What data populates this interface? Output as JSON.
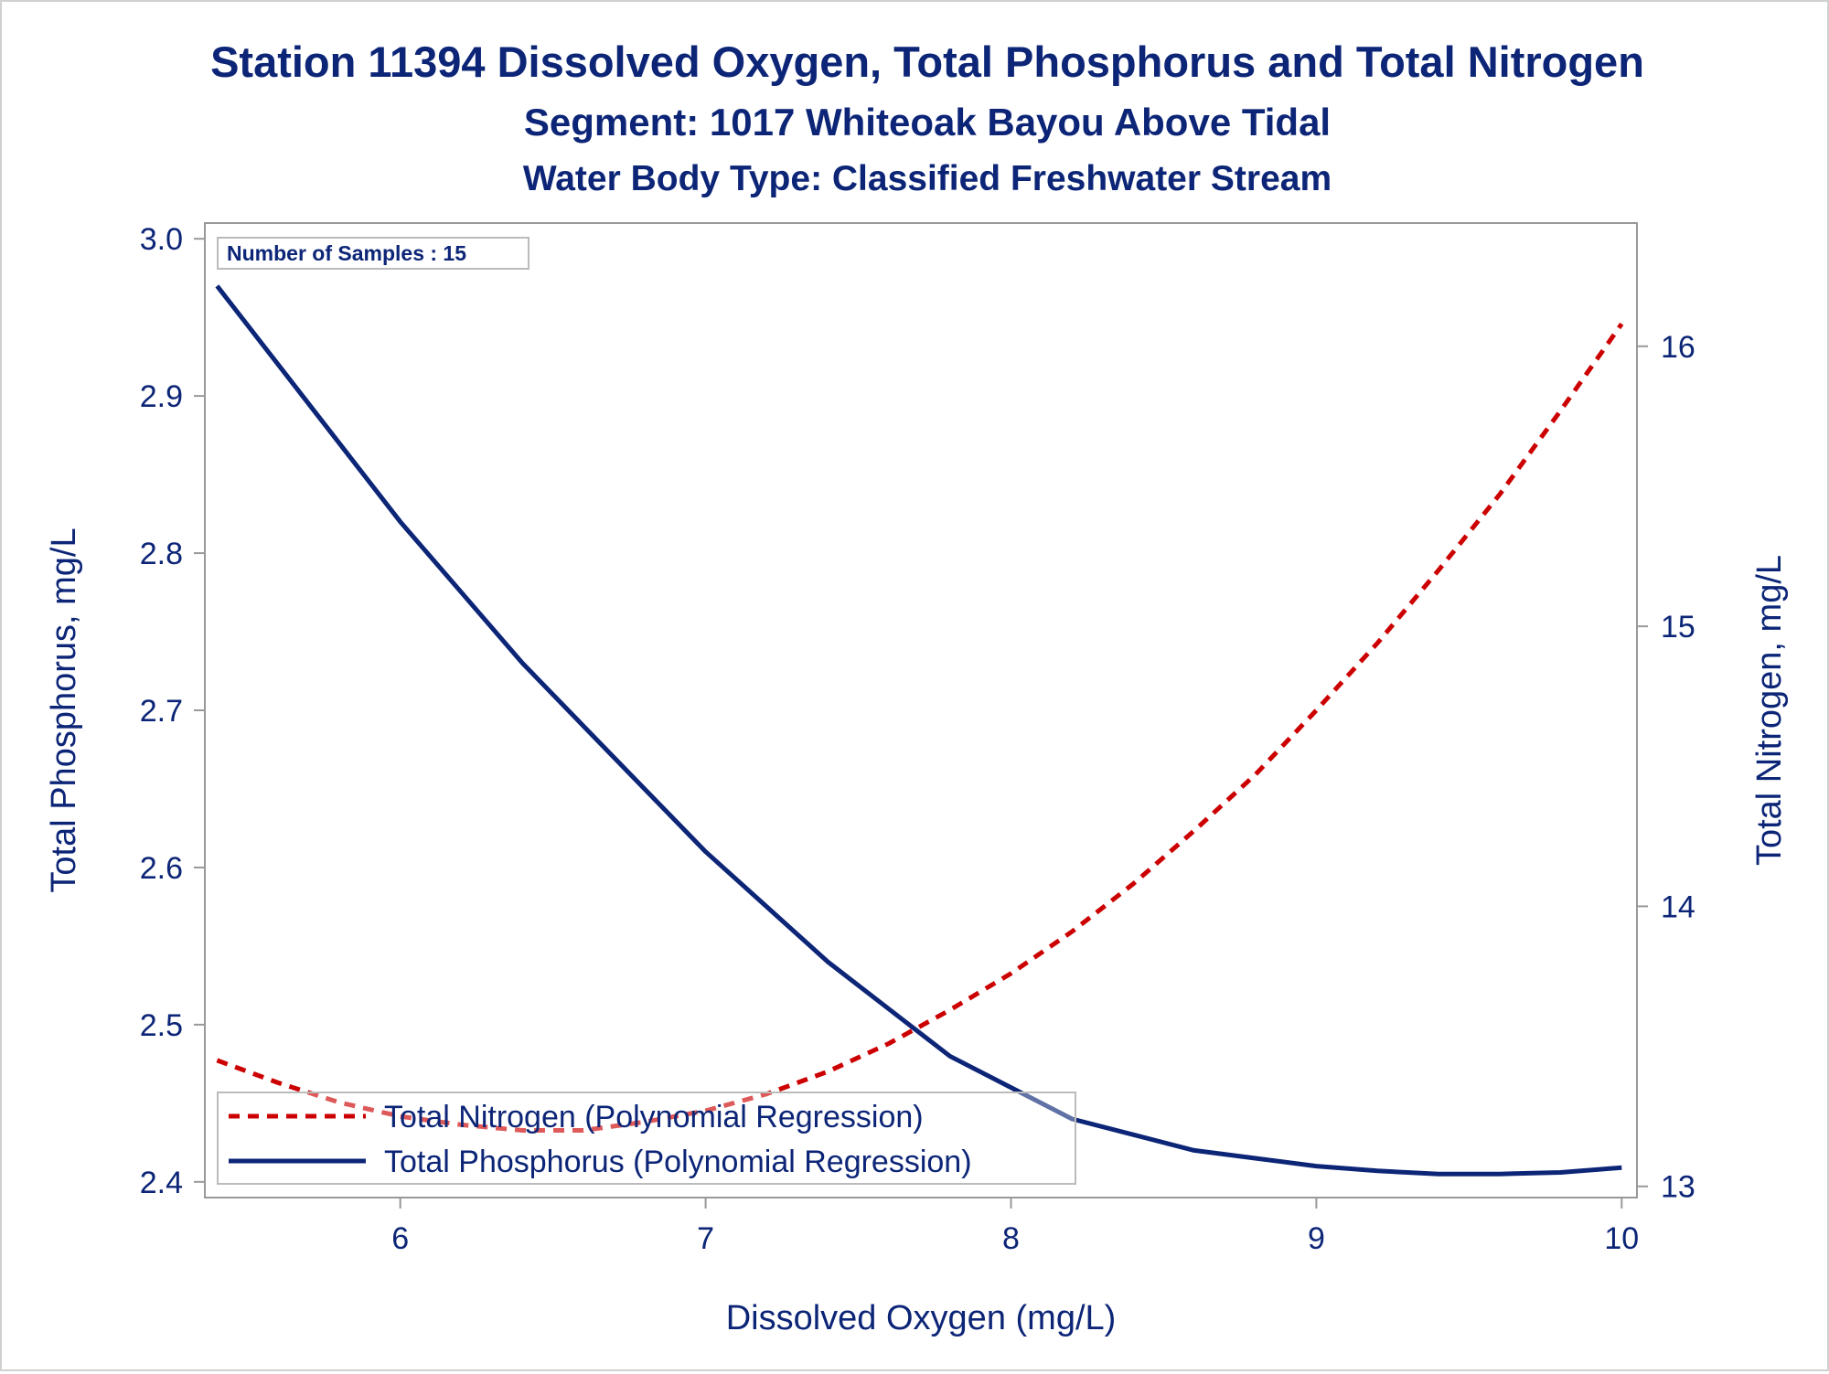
{
  "colors": {
    "text": "#0c2577",
    "frame": "#999999",
    "nitrogen": "#cc0000",
    "phosphorus": "#0c2577"
  },
  "chart_data": {
    "type": "line",
    "title": "Station 11394  Dissolved Oxygen, Total Phosphorus and Total Nitrogen",
    "subtitle": "Segment: 1017  Whiteoak Bayou Above Tidal",
    "subtitle2": "Water Body Type: Classified Freshwater Stream",
    "xlabel": "Dissolved Oxygen (mg/L)",
    "ylabel": "Total Phosphorus, mg/L",
    "y2label": "Total Nitrogen, mg/L",
    "inset": "Number of Samples : 15",
    "xlim": [
      5.36,
      10.05
    ],
    "ylim": [
      2.39,
      3.01
    ],
    "y2lim": [
      12.96,
      16.44
    ],
    "xticks": [
      6,
      7,
      8,
      9,
      10
    ],
    "yticks": [
      2.4,
      2.5,
      2.6,
      2.7,
      2.8,
      2.9,
      3.0
    ],
    "y2ticks": [
      13,
      14,
      15,
      16
    ],
    "ytick_decimals": 1,
    "grid": false,
    "legend_position": "bottom-left inside",
    "series": [
      {
        "name": "Total Nitrogen (Polynomial Regression)",
        "axis": "right",
        "style": "dashed",
        "x": [
          5.4,
          5.6,
          5.8,
          6.0,
          6.2,
          6.4,
          6.6,
          6.8,
          7.0,
          7.2,
          7.4,
          7.6,
          7.8,
          8.0,
          8.2,
          8.4,
          8.6,
          8.8,
          9.0,
          9.2,
          9.4,
          9.6,
          9.8,
          10.0
        ],
        "y": [
          13.45,
          13.37,
          13.3,
          13.25,
          13.22,
          13.2,
          13.2,
          13.23,
          13.27,
          13.33,
          13.41,
          13.51,
          13.63,
          13.76,
          13.91,
          14.08,
          14.27,
          14.47,
          14.7,
          14.94,
          15.2,
          15.47,
          15.77,
          16.08
        ]
      },
      {
        "name": "Total Phosphorus (Polynomial Regression)",
        "axis": "left",
        "style": "solid",
        "x": [
          5.4,
          5.6,
          5.8,
          6.0,
          6.2,
          6.4,
          6.6,
          6.8,
          7.0,
          7.2,
          7.4,
          7.6,
          7.8,
          8.0,
          8.2,
          8.4,
          8.6,
          8.8,
          9.0,
          9.2,
          9.4,
          9.6,
          9.8,
          10.0
        ],
        "y": [
          2.97,
          2.92,
          2.87,
          2.82,
          2.775,
          2.73,
          2.69,
          2.65,
          2.61,
          2.575,
          2.54,
          2.51,
          2.48,
          2.46,
          2.44,
          2.43,
          2.42,
          2.415,
          2.41,
          2.407,
          2.405,
          2.405,
          2.406,
          2.409
        ]
      }
    ]
  }
}
